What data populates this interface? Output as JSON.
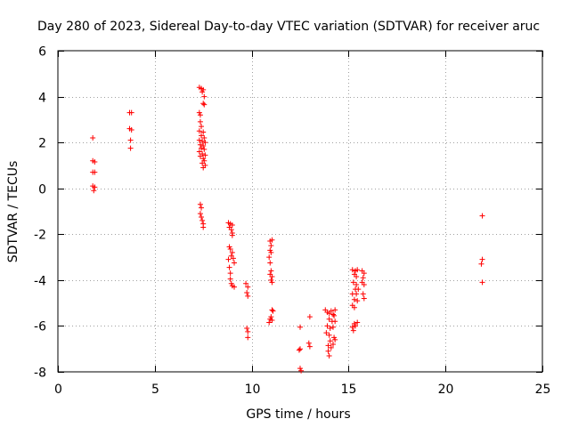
{
  "chart_data": {
    "type": "scatter",
    "title": "Day 280 of 2023, Sidereal Day-to-day VTEC variation (SDTVAR) for receiver aruc",
    "xlabel": "GPS time / hours",
    "ylabel": "SDTVAR / TECUs",
    "xlim": [
      0,
      25
    ],
    "ylim": [
      -8,
      6
    ],
    "xticks": [
      0,
      5,
      10,
      15,
      20,
      25
    ],
    "yticks": [
      -8,
      -6,
      -4,
      -2,
      0,
      2,
      4,
      6
    ],
    "xtick_labels": [
      "0",
      "5",
      "10",
      "15",
      "20",
      "25"
    ],
    "ytick_labels": [
      "-8",
      "-6",
      "-4",
      "-2",
      "0",
      "2",
      "4",
      "6"
    ],
    "grid": true,
    "marker": "plus",
    "color": "#ff0000",
    "series": [
      {
        "name": "SDTVAR",
        "points": [
          [
            1.8,
            2.2
          ],
          [
            1.8,
            1.2
          ],
          [
            1.9,
            1.15
          ],
          [
            1.8,
            0.7
          ],
          [
            1.9,
            0.7
          ],
          [
            1.8,
            0.1
          ],
          [
            1.9,
            0.05
          ],
          [
            1.85,
            -0.1
          ],
          [
            3.7,
            3.3
          ],
          [
            3.8,
            3.3
          ],
          [
            3.7,
            2.6
          ],
          [
            3.8,
            2.55
          ],
          [
            3.75,
            2.1
          ],
          [
            3.75,
            1.75
          ],
          [
            7.3,
            4.4
          ],
          [
            7.4,
            4.35
          ],
          [
            7.5,
            4.3
          ],
          [
            7.45,
            4.2
          ],
          [
            7.55,
            4.0
          ],
          [
            7.5,
            3.7
          ],
          [
            7.55,
            3.65
          ],
          [
            7.3,
            3.3
          ],
          [
            7.35,
            3.2
          ],
          [
            7.35,
            2.9
          ],
          [
            7.4,
            2.7
          ],
          [
            7.3,
            2.5
          ],
          [
            7.5,
            2.45
          ],
          [
            7.4,
            2.3
          ],
          [
            7.55,
            2.2
          ],
          [
            7.3,
            2.1
          ],
          [
            7.45,
            2.05
          ],
          [
            7.6,
            2.0
          ],
          [
            7.35,
            1.9
          ],
          [
            7.5,
            1.85
          ],
          [
            7.4,
            1.75
          ],
          [
            7.55,
            1.7
          ],
          [
            7.3,
            1.6
          ],
          [
            7.45,
            1.5
          ],
          [
            7.6,
            1.45
          ],
          [
            7.35,
            1.4
          ],
          [
            7.5,
            1.3
          ],
          [
            7.55,
            1.2
          ],
          [
            7.45,
            1.1
          ],
          [
            7.6,
            1.0
          ],
          [
            7.5,
            0.9
          ],
          [
            7.35,
            -0.7
          ],
          [
            7.4,
            -0.85
          ],
          [
            7.35,
            -1.1
          ],
          [
            7.4,
            -1.25
          ],
          [
            7.45,
            -1.4
          ],
          [
            7.5,
            -1.55
          ],
          [
            7.5,
            -1.7
          ],
          [
            8.8,
            -1.5
          ],
          [
            8.9,
            -1.55
          ],
          [
            9.0,
            -1.6
          ],
          [
            8.85,
            -1.7
          ],
          [
            8.95,
            -1.8
          ],
          [
            9.0,
            -1.95
          ],
          [
            9.0,
            -2.05
          ],
          [
            8.85,
            -2.55
          ],
          [
            8.9,
            -2.65
          ],
          [
            9.0,
            -2.8
          ],
          [
            8.95,
            -2.95
          ],
          [
            9.05,
            -3.05
          ],
          [
            8.8,
            -3.1
          ],
          [
            9.1,
            -3.25
          ],
          [
            8.85,
            -3.45
          ],
          [
            8.9,
            -3.7
          ],
          [
            8.9,
            -3.95
          ],
          [
            8.95,
            -4.15
          ],
          [
            9.0,
            -4.25
          ],
          [
            9.1,
            -4.3
          ],
          [
            9.7,
            -4.15
          ],
          [
            9.8,
            -4.3
          ],
          [
            9.75,
            -4.55
          ],
          [
            9.8,
            -4.7
          ],
          [
            9.75,
            -6.1
          ],
          [
            9.8,
            -6.25
          ],
          [
            9.8,
            -6.5
          ],
          [
            10.95,
            -2.3
          ],
          [
            11.05,
            -2.25
          ],
          [
            11.0,
            -2.5
          ],
          [
            10.95,
            -2.7
          ],
          [
            11.0,
            -2.8
          ],
          [
            10.9,
            -3.0
          ],
          [
            10.95,
            -3.25
          ],
          [
            11.0,
            -3.6
          ],
          [
            10.95,
            -3.75
          ],
          [
            11.05,
            -3.85
          ],
          [
            11.0,
            -4.0
          ],
          [
            11.05,
            -4.1
          ],
          [
            11.05,
            -5.3
          ],
          [
            11.1,
            -5.35
          ],
          [
            11.0,
            -5.6
          ],
          [
            10.95,
            -5.7
          ],
          [
            11.05,
            -5.75
          ],
          [
            10.9,
            -5.85
          ],
          [
            12.5,
            -6.05
          ],
          [
            12.45,
            -7.05
          ],
          [
            12.5,
            -7.0
          ],
          [
            12.5,
            -7.85
          ],
          [
            12.55,
            -7.95
          ],
          [
            13.0,
            -5.6
          ],
          [
            12.95,
            -6.75
          ],
          [
            13.0,
            -6.9
          ],
          [
            13.8,
            -5.3
          ],
          [
            13.9,
            -5.4
          ],
          [
            14.0,
            -5.45
          ],
          [
            14.1,
            -5.35
          ],
          [
            14.2,
            -5.5
          ],
          [
            14.3,
            -5.3
          ],
          [
            14.25,
            -5.55
          ],
          [
            14.0,
            -5.7
          ],
          [
            14.15,
            -5.8
          ],
          [
            14.3,
            -5.8
          ],
          [
            13.9,
            -6.0
          ],
          [
            14.05,
            -6.1
          ],
          [
            14.2,
            -6.05
          ],
          [
            13.85,
            -6.3
          ],
          [
            14.0,
            -6.4
          ],
          [
            14.25,
            -6.5
          ],
          [
            14.05,
            -6.65
          ],
          [
            14.3,
            -6.6
          ],
          [
            13.95,
            -6.85
          ],
          [
            14.1,
            -6.95
          ],
          [
            14.2,
            -6.8
          ],
          [
            13.95,
            -7.1
          ],
          [
            14.0,
            -7.3
          ],
          [
            15.2,
            -3.55
          ],
          [
            15.35,
            -3.6
          ],
          [
            15.45,
            -3.55
          ],
          [
            15.3,
            -3.75
          ],
          [
            15.4,
            -3.85
          ],
          [
            15.25,
            -4.1
          ],
          [
            15.4,
            -4.2
          ],
          [
            15.35,
            -4.4
          ],
          [
            15.5,
            -4.4
          ],
          [
            15.2,
            -4.6
          ],
          [
            15.4,
            -4.6
          ],
          [
            15.3,
            -4.85
          ],
          [
            15.45,
            -4.9
          ],
          [
            15.2,
            -5.1
          ],
          [
            15.3,
            -5.2
          ],
          [
            15.3,
            -5.9
          ],
          [
            15.45,
            -5.85
          ],
          [
            15.2,
            -6.05
          ],
          [
            15.35,
            -6.0
          ],
          [
            15.25,
            -6.2
          ],
          [
            15.7,
            -3.6
          ],
          [
            15.8,
            -3.7
          ],
          [
            15.75,
            -3.9
          ],
          [
            15.7,
            -4.1
          ],
          [
            15.8,
            -4.2
          ],
          [
            15.75,
            -4.6
          ],
          [
            15.8,
            -4.8
          ],
          [
            21.9,
            -1.2
          ],
          [
            21.9,
            -3.1
          ],
          [
            21.85,
            -3.3
          ],
          [
            21.9,
            -4.1
          ]
        ]
      }
    ]
  }
}
